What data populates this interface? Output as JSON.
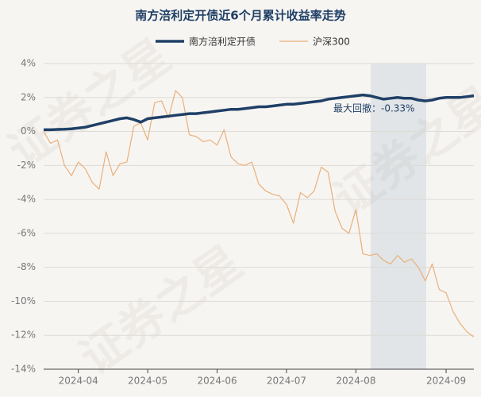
{
  "chart_data": {
    "type": "line",
    "title": "南方涪利定开债近6个月累计收益率走势",
    "watermark": "证券之星",
    "annotation": "最大回撤：-0.33%",
    "categories": [
      null,
      null,
      null,
      null,
      null,
      "2024-04",
      null,
      null,
      null,
      null,
      null,
      null,
      null,
      null,
      null,
      "2024-05",
      null,
      null,
      null,
      null,
      null,
      null,
      null,
      null,
      null,
      "2024-06",
      null,
      null,
      null,
      null,
      null,
      null,
      null,
      null,
      null,
      "2024-07",
      null,
      null,
      null,
      null,
      null,
      null,
      null,
      null,
      null,
      "2024-08",
      null,
      null,
      null,
      null,
      null,
      null,
      null,
      null,
      null,
      null,
      null,
      null,
      "2024-09",
      null,
      null,
      null,
      null
    ],
    "series": [
      {
        "name": "南方涪利定开债",
        "color": "#1f3f66",
        "width": 3.5,
        "values": [
          0.1,
          0.1,
          0.12,
          0.13,
          0.15,
          0.2,
          0.25,
          0.35,
          0.45,
          0.55,
          0.65,
          0.75,
          0.8,
          0.7,
          0.55,
          0.75,
          0.8,
          0.85,
          0.9,
          0.95,
          1.0,
          1.05,
          1.05,
          1.1,
          1.15,
          1.2,
          1.25,
          1.3,
          1.3,
          1.35,
          1.4,
          1.45,
          1.45,
          1.5,
          1.55,
          1.6,
          1.6,
          1.65,
          1.7,
          1.75,
          1.8,
          1.9,
          1.95,
          2.0,
          2.05,
          2.1,
          2.15,
          2.1,
          2.0,
          1.9,
          1.95,
          2.0,
          1.95,
          1.95,
          1.85,
          1.8,
          1.85,
          1.95,
          2.0,
          2.0,
          2.0,
          2.05,
          2.1
        ]
      },
      {
        "name": "沪深300",
        "color": "#e9b07a",
        "width": 1.2,
        "values": [
          0,
          -0.7,
          -0.5,
          -2.0,
          -2.6,
          -1.8,
          -2.2,
          -3.0,
          -3.4,
          -1.2,
          -2.6,
          -1.9,
          -1.8,
          0.3,
          0.5,
          -0.5,
          1.7,
          1.8,
          0.8,
          2.4,
          2.0,
          -0.2,
          -0.3,
          -0.6,
          -0.5,
          -0.8,
          0.1,
          -1.5,
          -1.9,
          -2.0,
          -1.8,
          -3.1,
          -3.5,
          -3.7,
          -3.8,
          -4.3,
          -5.4,
          -3.6,
          -3.9,
          -3.5,
          -2.1,
          -2.4,
          -4.7,
          -5.7,
          -6.0,
          -4.6,
          -7.2,
          -7.3,
          -7.2,
          -7.6,
          -7.8,
          -7.3,
          -7.7,
          -7.5,
          -8.0,
          -8.8,
          -7.8,
          -9.3,
          -9.5,
          -10.6,
          -11.3,
          -11.8,
          -12.1
        ]
      }
    ],
    "ylim": [
      -14,
      4
    ],
    "yticks": [
      {
        "value": -14,
        "label": "-14%"
      },
      {
        "value": -12,
        "label": "-12%"
      },
      {
        "value": -10,
        "label": "-10%"
      },
      {
        "value": -8,
        "label": "-8%"
      },
      {
        "value": -6,
        "label": "-6%"
      },
      {
        "value": -4,
        "label": "-4%"
      },
      {
        "value": -2,
        "label": "-2%"
      },
      {
        "value": 0,
        "label": "0%"
      },
      {
        "value": 2,
        "label": "2%"
      },
      {
        "value": 4,
        "label": "4%"
      }
    ],
    "grid": true
  }
}
